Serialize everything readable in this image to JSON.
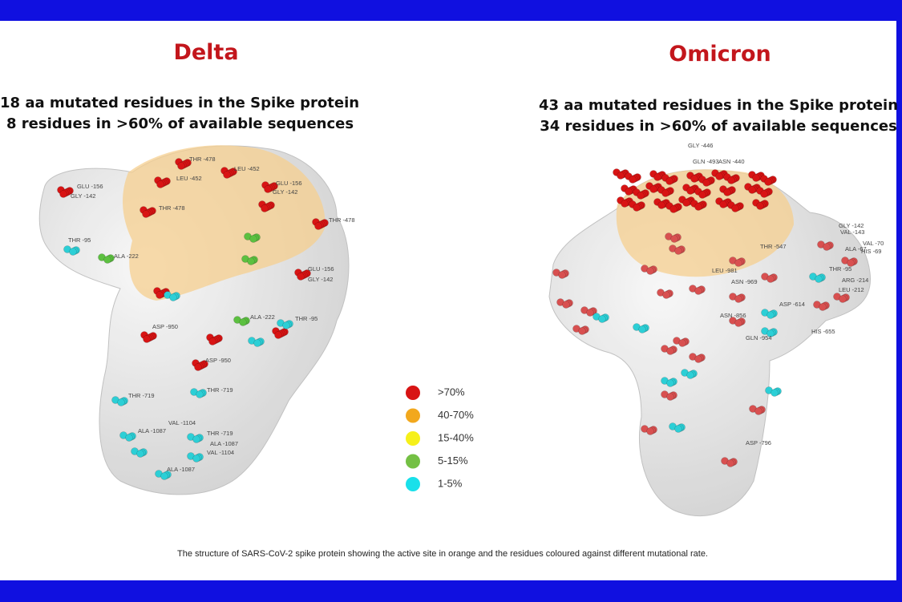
{
  "delta": {
    "title": "Delta",
    "subtitle_lines": [
      "18 aa mutated residues in the Spike protein",
      "8 residues in >60% of available sequences"
    ],
    "residues": [
      "THR -478",
      "LEU -452",
      "LEU -452",
      "GLU -156",
      "GLY -142",
      "GLU -156",
      "GLY -142",
      "THR -478",
      "THR -478",
      "THR -95",
      "ALA -222",
      "GLU -156",
      "GLY -142",
      "ASP -950",
      "ALA -222",
      "THR -95",
      "ASP -950",
      "THR -719",
      "THR -719",
      "VAL -1104",
      "ALA -1087",
      "THR -719",
      "ALA -1087",
      "VAL -1104",
      "ALA -1087"
    ]
  },
  "omicron": {
    "title": "Omicron",
    "subtitle_lines": [
      "43 aa mutated residues in the Spike protein",
      "34 residues in >60% of available sequences"
    ],
    "residues": [
      "GLY -446",
      "GLN -493",
      "ASN -440",
      "THR -547",
      "LEU -981",
      "ASN -969",
      "ASP -614",
      "ASN -856",
      "GLN -954",
      "HIS -655",
      "ASP -796",
      "GLY -142",
      "VAL -143",
      "VAL -70",
      "ALA -67",
      "HIS -69",
      "THR -95",
      "ARG -214",
      "LEU -212"
    ]
  },
  "legend": [
    {
      "label": ">70%",
      "color": "#d81414"
    },
    {
      "label": "40-70%",
      "color": "#f2a81d"
    },
    {
      "label": "15-40%",
      "color": "#f6f01a"
    },
    {
      "label": "5-15%",
      "color": "#74c044"
    },
    {
      "label": "1-5%",
      "color": "#19e0ea"
    }
  ],
  "caption": "The structure of SARS-CoV-2 spike protein showing the active site in orange and the residues coloured against different mutational rate."
}
